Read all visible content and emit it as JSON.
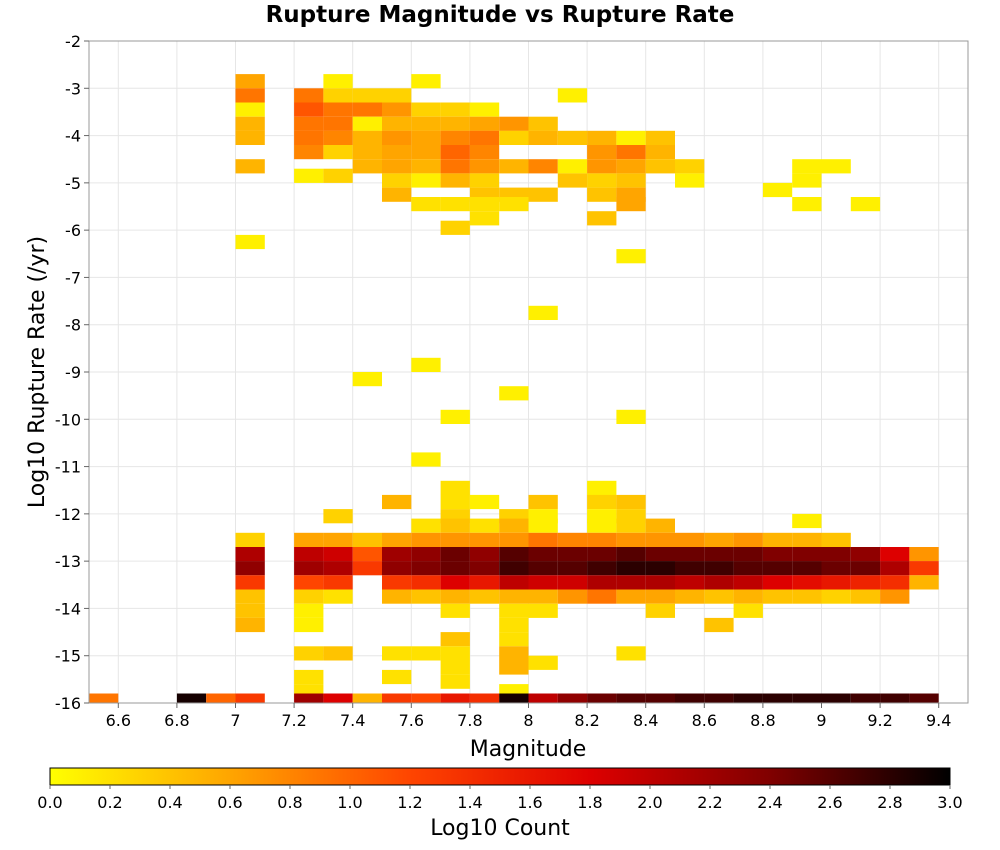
{
  "chart_data": {
    "type": "heatmap",
    "title": "Rupture Magnitude vs Rupture Rate",
    "xlabel": "Magnitude",
    "ylabel": "Log10 Rupture Rate (/yr)",
    "xlim": [
      6.5,
      9.5
    ],
    "ylim": [
      -16,
      -2
    ],
    "x_ticks": [
      6.6,
      6.8,
      7,
      7.2,
      7.4,
      7.6,
      7.8,
      8,
      8.2,
      8.4,
      8.6,
      8.8,
      9,
      9.2,
      9.4
    ],
    "x_tick_labels": [
      "6.6",
      "6.8",
      "7",
      "7.2",
      "7.4",
      "7.6",
      "7.8",
      "8",
      "8.2",
      "8.4",
      "8.6",
      "8.8",
      "9",
      "9.2",
      "9.4"
    ],
    "y_ticks": [
      -2,
      -3,
      -4,
      -5,
      -6,
      -7,
      -8,
      -9,
      -10,
      -11,
      -12,
      -13,
      -14,
      -15,
      -16
    ],
    "y_tick_labels": [
      "-2",
      "-3",
      "-4",
      "-5",
      "-6",
      "-7",
      "-8",
      "-9",
      "-10",
      "-11",
      "-12",
      "-13",
      "-14",
      "-15",
      "-16"
    ],
    "grid": true,
    "x_bin_width": 0.1,
    "y_bin_height": 0.3,
    "colorbar": {
      "label": "Log10 Count",
      "min": 0,
      "max": 3,
      "ticks": [
        0.0,
        0.2,
        0.4,
        0.6,
        0.8,
        1.0,
        1.2,
        1.4,
        1.6,
        1.8,
        2.0,
        2.2,
        2.4,
        2.6,
        2.8,
        3.0
      ],
      "tick_labels": [
        "0.0",
        "0.2",
        "0.4",
        "0.6",
        "0.8",
        "1.0",
        "1.2",
        "1.4",
        "1.6",
        "1.8",
        "2.0",
        "2.2",
        "2.4",
        "2.6",
        "2.8",
        "3.0"
      ],
      "colormap": [
        "#ffff00",
        "#ffa500",
        "#ff4500",
        "#dd0000",
        "#800000",
        "#000000"
      ]
    },
    "cells": [
      [
        7.05,
        -2.85,
        0.6
      ],
      [
        7.05,
        -3.15,
        0.9
      ],
      [
        7.05,
        -3.45,
        0.1
      ],
      [
        7.05,
        -3.75,
        0.5
      ],
      [
        7.05,
        -4.05,
        0.5
      ],
      [
        7.05,
        -4.65,
        0.5
      ],
      [
        7.05,
        -6.25,
        0.1
      ],
      [
        7.25,
        -3.15,
        0.9
      ],
      [
        7.25,
        -3.45,
        1.1
      ],
      [
        7.25,
        -3.75,
        0.9
      ],
      [
        7.25,
        -4.05,
        0.9
      ],
      [
        7.25,
        -4.35,
        0.8
      ],
      [
        7.25,
        -4.85,
        0.1
      ],
      [
        7.35,
        -2.85,
        0.1
      ],
      [
        7.35,
        -3.15,
        0.3
      ],
      [
        7.35,
        -3.45,
        0.9
      ],
      [
        7.35,
        -3.75,
        0.9
      ],
      [
        7.35,
        -4.05,
        0.8
      ],
      [
        7.35,
        -4.35,
        0.3
      ],
      [
        7.35,
        -4.85,
        0.3
      ],
      [
        7.45,
        -3.15,
        0.3
      ],
      [
        7.45,
        -3.45,
        0.9
      ],
      [
        7.45,
        -3.75,
        0.1
      ],
      [
        7.45,
        -4.05,
        0.5
      ],
      [
        7.45,
        -4.35,
        0.5
      ],
      [
        7.45,
        -4.65,
        0.5
      ],
      [
        7.55,
        -3.15,
        0.3
      ],
      [
        7.55,
        -3.45,
        0.7
      ],
      [
        7.55,
        -3.75,
        0.5
      ],
      [
        7.55,
        -4.05,
        0.7
      ],
      [
        7.55,
        -4.35,
        0.6
      ],
      [
        7.55,
        -4.65,
        0.6
      ],
      [
        7.55,
        -4.95,
        0.3
      ],
      [
        7.55,
        -5.25,
        0.5
      ],
      [
        7.65,
        -2.85,
        0.1
      ],
      [
        7.65,
        -3.45,
        0.3
      ],
      [
        7.65,
        -3.75,
        0.5
      ],
      [
        7.65,
        -4.05,
        0.6
      ],
      [
        7.65,
        -4.35,
        0.6
      ],
      [
        7.65,
        -4.65,
        0.5
      ],
      [
        7.65,
        -4.95,
        0.1
      ],
      [
        7.65,
        -5.45,
        0.2
      ],
      [
        7.75,
        -3.45,
        0.3
      ],
      [
        7.75,
        -3.75,
        0.5
      ],
      [
        7.75,
        -4.05,
        0.8
      ],
      [
        7.75,
        -4.35,
        1.0
      ],
      [
        7.75,
        -4.65,
        0.9
      ],
      [
        7.75,
        -4.95,
        0.5
      ],
      [
        7.75,
        -5.45,
        0.2
      ],
      [
        7.75,
        -5.95,
        0.3
      ],
      [
        7.85,
        -3.45,
        0.1
      ],
      [
        7.85,
        -3.75,
        0.6
      ],
      [
        7.85,
        -4.05,
        0.9
      ],
      [
        7.85,
        -4.35,
        0.8
      ],
      [
        7.85,
        -4.65,
        0.7
      ],
      [
        7.85,
        -4.95,
        0.3
      ],
      [
        7.85,
        -5.25,
        0.4
      ],
      [
        7.85,
        -5.45,
        0.2
      ],
      [
        7.85,
        -5.75,
        0.2
      ],
      [
        7.95,
        -3.75,
        0.7
      ],
      [
        7.95,
        -4.05,
        0.3
      ],
      [
        7.95,
        -4.65,
        0.5
      ],
      [
        7.95,
        -5.25,
        0.4
      ],
      [
        7.95,
        -5.45,
        0.2
      ],
      [
        8.05,
        -3.75,
        0.4
      ],
      [
        8.05,
        -4.05,
        0.5
      ],
      [
        8.05,
        -4.65,
        0.8
      ],
      [
        8.05,
        -5.25,
        0.4
      ],
      [
        8.15,
        -3.15,
        0.1
      ],
      [
        8.15,
        -4.05,
        0.4
      ],
      [
        8.15,
        -4.65,
        0.1
      ],
      [
        8.15,
        -4.95,
        0.4
      ],
      [
        8.25,
        -4.05,
        0.5
      ],
      [
        8.25,
        -4.35,
        0.7
      ],
      [
        8.25,
        -4.65,
        0.7
      ],
      [
        8.25,
        -4.95,
        0.3
      ],
      [
        8.25,
        -5.25,
        0.4
      ],
      [
        8.25,
        -5.75,
        0.4
      ],
      [
        8.35,
        -4.05,
        0.1
      ],
      [
        8.35,
        -4.35,
        0.9
      ],
      [
        8.35,
        -4.65,
        0.6
      ],
      [
        8.35,
        -4.95,
        0.4
      ],
      [
        8.35,
        -5.25,
        0.6
      ],
      [
        8.35,
        -5.45,
        0.6
      ],
      [
        8.35,
        -6.55,
        0.1
      ],
      [
        8.45,
        -4.05,
        0.4
      ],
      [
        8.45,
        -4.35,
        0.5
      ],
      [
        8.45,
        -4.65,
        0.4
      ],
      [
        8.55,
        -4.65,
        0.3
      ],
      [
        8.55,
        -4.95,
        0.1
      ],
      [
        8.85,
        -5.15,
        0.1
      ],
      [
        8.95,
        -4.65,
        0.1
      ],
      [
        8.95,
        -4.95,
        0.1
      ],
      [
        8.95,
        -5.45,
        0.1
      ],
      [
        9.05,
        -4.65,
        0.1
      ],
      [
        9.15,
        -5.45,
        0.1
      ],
      [
        8.05,
        -7.75,
        0.1
      ],
      [
        7.65,
        -8.85,
        0.1
      ],
      [
        7.45,
        -9.15,
        0.1
      ],
      [
        7.95,
        -9.45,
        0.1
      ],
      [
        7.75,
        -9.95,
        0.1
      ],
      [
        8.35,
        -9.95,
        0.1
      ],
      [
        7.65,
        -10.85,
        0.1
      ],
      [
        7.75,
        -11.45,
        0.2
      ],
      [
        7.55,
        -11.75,
        0.5
      ],
      [
        7.85,
        -11.75,
        0.1
      ],
      [
        7.35,
        -12.05,
        0.3
      ],
      [
        7.65,
        -12.25,
        0.2
      ],
      [
        8.05,
        -11.75,
        0.4
      ],
      [
        8.05,
        -12.05,
        0.1
      ],
      [
        8.05,
        -12.25,
        0.1
      ],
      [
        8.25,
        -11.45,
        0.1
      ],
      [
        8.25,
        -11.75,
        0.3
      ],
      [
        8.35,
        -11.75,
        0.4
      ],
      [
        8.25,
        -12.05,
        0.1
      ],
      [
        8.35,
        -12.05,
        0.3
      ],
      [
        8.25,
        -12.25,
        0.1
      ],
      [
        8.35,
        -12.25,
        0.3
      ],
      [
        8.45,
        -12.25,
        0.5
      ],
      [
        8.95,
        -12.15,
        0.1
      ],
      [
        7.75,
        -11.75,
        0.2
      ],
      [
        7.75,
        -12.05,
        0.3
      ],
      [
        7.75,
        -12.25,
        0.4
      ],
      [
        7.85,
        -12.25,
        0.2
      ],
      [
        7.95,
        -12.05,
        0.3
      ],
      [
        7.95,
        -12.25,
        0.5
      ],
      [
        7.05,
        -12.55,
        0.3
      ],
      [
        7.05,
        -12.85,
        2.1
      ],
      [
        7.05,
        -13.15,
        2.3
      ],
      [
        7.05,
        -13.45,
        1.3
      ],
      [
        7.05,
        -13.75,
        0.4
      ],
      [
        7.05,
        -14.05,
        0.4
      ],
      [
        7.05,
        -14.35,
        0.5
      ],
      [
        7.25,
        -12.55,
        0.6
      ],
      [
        7.25,
        -12.85,
        2.0
      ],
      [
        7.25,
        -13.15,
        2.2
      ],
      [
        7.25,
        -13.45,
        1.2
      ],
      [
        7.25,
        -13.75,
        0.3
      ],
      [
        7.25,
        -14.05,
        0.1
      ],
      [
        7.25,
        -14.35,
        0.1
      ],
      [
        7.35,
        -12.55,
        0.6
      ],
      [
        7.35,
        -12.85,
        1.9
      ],
      [
        7.35,
        -13.15,
        2.1
      ],
      [
        7.35,
        -13.45,
        1.3
      ],
      [
        7.35,
        -13.75,
        0.2
      ],
      [
        7.45,
        -12.55,
        0.4
      ],
      [
        7.45,
        -12.85,
        1.1
      ],
      [
        7.45,
        -13.15,
        1.3
      ],
      [
        7.55,
        -12.55,
        0.6
      ],
      [
        7.55,
        -12.85,
        2.2
      ],
      [
        7.55,
        -13.15,
        2.3
      ],
      [
        7.55,
        -13.45,
        1.3
      ],
      [
        7.55,
        -13.75,
        0.5
      ],
      [
        7.65,
        -12.55,
        0.7
      ],
      [
        7.65,
        -12.85,
        2.3
      ],
      [
        7.65,
        -13.15,
        2.4
      ],
      [
        7.65,
        -13.45,
        1.4
      ],
      [
        7.65,
        -13.75,
        0.4
      ],
      [
        7.75,
        -12.55,
        0.7
      ],
      [
        7.75,
        -12.85,
        2.5
      ],
      [
        7.75,
        -13.15,
        2.5
      ],
      [
        7.75,
        -13.45,
        1.8
      ],
      [
        7.75,
        -13.75,
        0.5
      ],
      [
        7.75,
        -14.05,
        0.2
      ],
      [
        7.85,
        -12.55,
        0.7
      ],
      [
        7.85,
        -12.85,
        2.3
      ],
      [
        7.85,
        -13.15,
        2.4
      ],
      [
        7.85,
        -13.45,
        1.6
      ],
      [
        7.85,
        -13.75,
        0.4
      ],
      [
        7.95,
        -12.55,
        0.7
      ],
      [
        7.95,
        -12.85,
        2.6
      ],
      [
        7.95,
        -13.15,
        2.7
      ],
      [
        7.95,
        -13.45,
        2.0
      ],
      [
        7.95,
        -13.75,
        0.5
      ],
      [
        7.95,
        -14.05,
        0.2
      ],
      [
        8.05,
        -12.55,
        0.9
      ],
      [
        8.05,
        -12.85,
        2.5
      ],
      [
        8.05,
        -13.15,
        2.6
      ],
      [
        8.05,
        -13.45,
        1.9
      ],
      [
        8.05,
        -13.75,
        0.5
      ],
      [
        8.05,
        -14.05,
        0.2
      ],
      [
        8.15,
        -12.55,
        0.8
      ],
      [
        8.15,
        -12.85,
        2.5
      ],
      [
        8.15,
        -13.15,
        2.6
      ],
      [
        8.15,
        -13.45,
        1.9
      ],
      [
        8.15,
        -13.75,
        0.7
      ],
      [
        8.25,
        -12.55,
        0.8
      ],
      [
        8.25,
        -12.85,
        2.5
      ],
      [
        8.25,
        -13.15,
        2.7
      ],
      [
        8.25,
        -13.45,
        2.1
      ],
      [
        8.25,
        -13.75,
        0.9
      ],
      [
        8.35,
        -12.55,
        0.7
      ],
      [
        8.35,
        -12.85,
        2.6
      ],
      [
        8.35,
        -13.15,
        2.8
      ],
      [
        8.35,
        -13.45,
        2.1
      ],
      [
        8.35,
        -13.75,
        0.6
      ],
      [
        8.45,
        -12.55,
        0.7
      ],
      [
        8.45,
        -12.85,
        2.5
      ],
      [
        8.45,
        -13.15,
        2.8
      ],
      [
        8.45,
        -13.45,
        2.1
      ],
      [
        8.45,
        -13.75,
        0.6
      ],
      [
        8.45,
        -14.05,
        0.3
      ],
      [
        8.55,
        -12.55,
        0.7
      ],
      [
        8.55,
        -12.85,
        2.5
      ],
      [
        8.55,
        -13.15,
        2.7
      ],
      [
        8.55,
        -13.45,
        2.0
      ],
      [
        8.55,
        -13.75,
        0.5
      ],
      [
        8.65,
        -12.55,
        0.6
      ],
      [
        8.65,
        -12.85,
        2.5
      ],
      [
        8.65,
        -13.15,
        2.7
      ],
      [
        8.65,
        -13.45,
        2.1
      ],
      [
        8.65,
        -13.75,
        0.4
      ],
      [
        8.65,
        -14.35,
        0.4
      ],
      [
        8.75,
        -12.55,
        0.7
      ],
      [
        8.75,
        -12.85,
        2.5
      ],
      [
        8.75,
        -13.15,
        2.6
      ],
      [
        8.75,
        -13.45,
        2.0
      ],
      [
        8.75,
        -13.75,
        0.5
      ],
      [
        8.75,
        -14.05,
        0.2
      ],
      [
        8.85,
        -12.55,
        0.5
      ],
      [
        8.85,
        -12.85,
        2.4
      ],
      [
        8.85,
        -13.15,
        2.6
      ],
      [
        8.85,
        -13.45,
        1.8
      ],
      [
        8.85,
        -13.75,
        0.4
      ],
      [
        8.95,
        -12.55,
        0.5
      ],
      [
        8.95,
        -12.85,
        2.4
      ],
      [
        8.95,
        -13.15,
        2.6
      ],
      [
        8.95,
        -13.45,
        1.7
      ],
      [
        8.95,
        -13.75,
        0.4
      ],
      [
        9.05,
        -12.55,
        0.4
      ],
      [
        9.05,
        -12.85,
        2.4
      ],
      [
        9.05,
        -13.15,
        2.5
      ],
      [
        9.05,
        -13.45,
        1.6
      ],
      [
        9.05,
        -13.75,
        0.3
      ],
      [
        9.15,
        -12.85,
        2.3
      ],
      [
        9.15,
        -13.15,
        2.5
      ],
      [
        9.15,
        -13.45,
        1.5
      ],
      [
        9.15,
        -13.75,
        0.4
      ],
      [
        9.25,
        -12.85,
        1.8
      ],
      [
        9.25,
        -13.15,
        2.1
      ],
      [
        9.25,
        -13.45,
        1.4
      ],
      [
        9.25,
        -13.75,
        0.7
      ],
      [
        9.35,
        -12.85,
        0.7
      ],
      [
        9.35,
        -13.15,
        1.3
      ],
      [
        9.35,
        -13.45,
        0.5
      ],
      [
        7.25,
        -14.95,
        0.3
      ],
      [
        7.35,
        -14.95,
        0.4
      ],
      [
        7.55,
        -14.95,
        0.2
      ],
      [
        7.65,
        -14.95,
        0.2
      ],
      [
        7.75,
        -14.65,
        0.4
      ],
      [
        7.75,
        -14.95,
        0.2
      ],
      [
        7.75,
        -15.25,
        0.2
      ],
      [
        7.75,
        -15.55,
        0.2
      ],
      [
        7.95,
        -14.35,
        0.2
      ],
      [
        7.95,
        -14.65,
        0.2
      ],
      [
        7.95,
        -14.95,
        0.5
      ],
      [
        7.95,
        -15.25,
        0.5
      ],
      [
        8.05,
        -15.15,
        0.2
      ],
      [
        8.35,
        -14.95,
        0.2
      ],
      [
        7.55,
        -15.45,
        0.2
      ],
      [
        7.25,
        -15.45,
        0.2
      ],
      [
        7.25,
        -15.75,
        0.2
      ],
      [
        7.95,
        -15.75,
        0.1
      ],
      [
        6.55,
        -15.95,
        0.9
      ],
      [
        6.85,
        -15.95,
        2.9
      ],
      [
        6.95,
        -15.95,
        1.0
      ],
      [
        7.05,
        -15.95,
        1.3
      ],
      [
        7.25,
        -15.95,
        2.2
      ],
      [
        7.35,
        -15.95,
        1.8
      ],
      [
        7.45,
        -15.95,
        0.5
      ],
      [
        7.55,
        -15.95,
        1.3
      ],
      [
        7.65,
        -15.95,
        1.2
      ],
      [
        7.75,
        -15.95,
        1.6
      ],
      [
        7.85,
        -15.95,
        1.4
      ],
      [
        7.95,
        -15.95,
        2.9
      ],
      [
        8.05,
        -15.95,
        2.0
      ],
      [
        8.15,
        -15.95,
        2.3
      ],
      [
        8.25,
        -15.95,
        2.5
      ],
      [
        8.35,
        -15.95,
        2.6
      ],
      [
        8.45,
        -15.95,
        2.6
      ],
      [
        8.55,
        -15.95,
        2.7
      ],
      [
        8.65,
        -15.95,
        2.7
      ],
      [
        8.75,
        -15.95,
        2.8
      ],
      [
        8.85,
        -15.95,
        2.8
      ],
      [
        8.95,
        -15.95,
        2.8
      ],
      [
        9.05,
        -15.95,
        2.8
      ],
      [
        9.15,
        -15.95,
        2.7
      ],
      [
        9.25,
        -15.95,
        2.7
      ],
      [
        9.35,
        -15.95,
        2.6
      ]
    ]
  }
}
